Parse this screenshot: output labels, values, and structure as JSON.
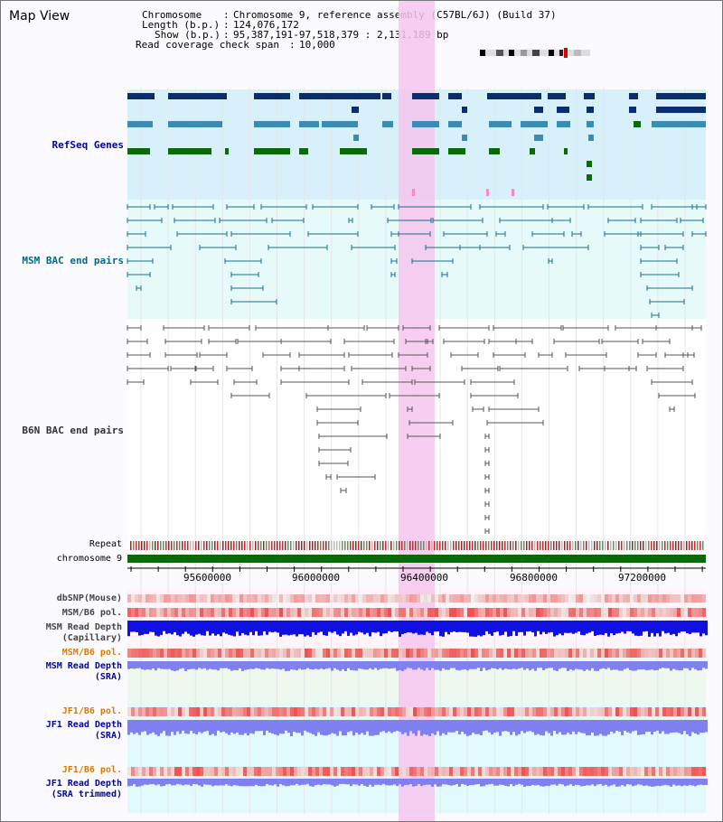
{
  "page": {
    "title": "Map View"
  },
  "info": {
    "chromosome_label": "Chromosome",
    "chromosome_value": "Chromosome 9, reference assembly (C57BL/6J) (Build 37)",
    "length_label": "Length (b.p.)",
    "length_value": "124,076,172",
    "show_label": "Show (b.p.)",
    "show_value": "95,387,191-97,518,379 : 2,131,189 bp",
    "coverage_label": "Read coverage check span",
    "coverage_value": "10,000"
  },
  "tracks": {
    "refseq": "RefSeq Genes",
    "msm_bac": "MSM BAC end pairs",
    "b6n_bac": "B6N BAC end pairs",
    "repeat": "Repeat",
    "chromosome": "chromosome 9",
    "dbsnp": "dbSNP(Mouse)",
    "msm_b6_pol_1": "MSM/B6 pol.",
    "msm_read_depth_cap_1": "MSM Read Depth",
    "msm_read_depth_cap_2": "(Capillary)",
    "msm_b6_pol_2": "MSM/B6 pol.",
    "msm_read_depth_sra_1": "MSM Read Depth",
    "msm_read_depth_sra_2": "(SRA)",
    "jf1_b6_pol_1": "JF1/B6 pol.",
    "jf1_read_depth_sra_1": "JF1 Read Depth",
    "jf1_read_depth_sra_2": "(SRA)",
    "jf1_b6_pol_2": "JF1/B6 pol.",
    "jf1_read_depth_trim_1": "JF1 Read Depth",
    "jf1_read_depth_trim_2": "(SRA trimmed)"
  },
  "axis": {
    "ticks": [
      "95600000",
      "96000000",
      "96400000",
      "96800000",
      "97200000"
    ]
  },
  "colors": {
    "refseq_dark": "#0a2d6e",
    "refseq_mid": "#3b8bb5",
    "refseq_green": "#0a6a0a",
    "msm_line": "#1c6e8c",
    "b6n_line": "#555555",
    "highlight": "#f6c6ee",
    "depth_blue": "#1010e0",
    "depth_light": "#8080f0",
    "pol_red": "#f06060",
    "label_blue": "#0000aa",
    "label_teal": "#006a8a",
    "label_orange": "#e07800"
  }
}
